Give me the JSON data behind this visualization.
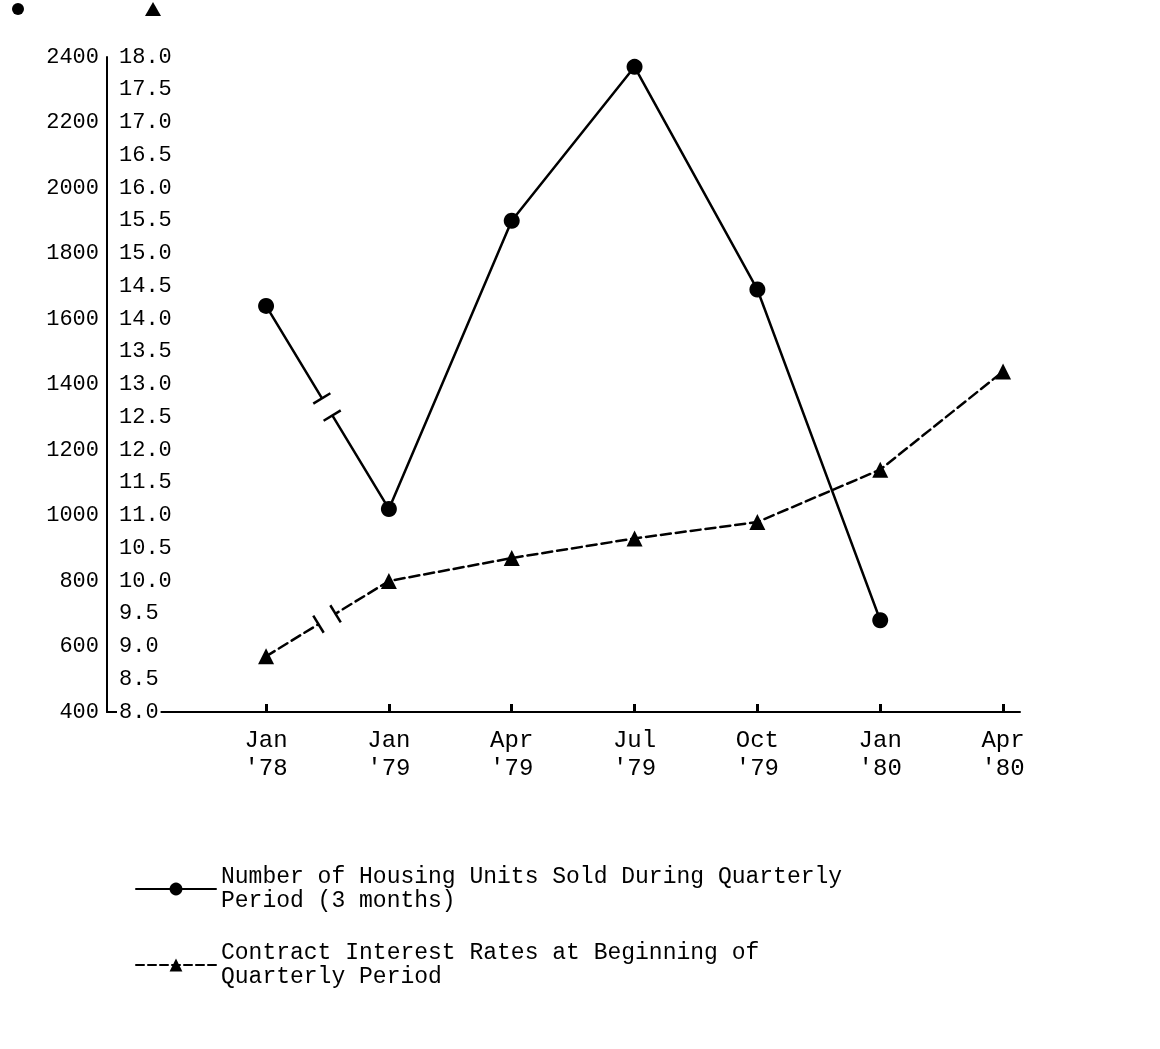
{
  "chart_data": {
    "type": "line",
    "categories": [
      "Jan\n'78",
      "Jan\n'79",
      "Apr\n'79",
      "Jul\n'79",
      "Oct\n'79",
      "Jan\n'80",
      "Apr\n'80"
    ],
    "series": [
      {
        "name": "Number of Housing Units Sold During Quarterly Period (3 months)",
        "color": "#000000",
        "marker": "circle",
        "line_style": "solid",
        "values": [
          1640,
          1020,
          1900,
          2370,
          1690,
          680,
          null
        ]
      },
      {
        "name": "Contract Interest Rates at Beginning of Quarterly Period",
        "color": "#000000",
        "marker": "triangle",
        "line_style": "dashed",
        "axis": "y2",
        "values": [
          8.85,
          10.0,
          10.35,
          10.65,
          10.9,
          11.7,
          13.2
        ]
      }
    ],
    "ylim": [
      400,
      2400
    ],
    "yticks": [
      400,
      600,
      800,
      1000,
      1200,
      1400,
      1600,
      1800,
      2000,
      2200,
      2400
    ],
    "y2lim": [
      8,
      18
    ],
    "y2ticks": [
      {
        "value": 8,
        "label": "8.0"
      },
      {
        "value": 8.5,
        "label": "8.5"
      },
      {
        "value": 9,
        "label": "9.0"
      },
      {
        "value": 9.5,
        "label": "9.5"
      },
      {
        "value": 10,
        "label": "10.0"
      },
      {
        "value": 10.5,
        "label": "10.5"
      },
      {
        "value": 11,
        "label": "11.0"
      },
      {
        "value": 11.5,
        "label": "11.5"
      },
      {
        "value": 12,
        "label": "12.0"
      },
      {
        "value": 12.5,
        "label": "12.5"
      },
      {
        "value": 13,
        "label": "13.0"
      },
      {
        "value": 13.5,
        "label": "13.5"
      },
      {
        "value": 14,
        "label": "14.0"
      },
      {
        "value": 14.5,
        "label": "14.5"
      },
      {
        "value": 15,
        "label": "15.0"
      },
      {
        "value": 15.5,
        "label": "15.5"
      },
      {
        "value": 16,
        "label": "16.0"
      },
      {
        "value": 16.5,
        "label": "16.5"
      },
      {
        "value": 17,
        "label": "17.0"
      },
      {
        "value": 17.5,
        "label": "17.5"
      },
      {
        "value": 18,
        "label": "18.0"
      }
    ],
    "grid": false,
    "legend": "bottom"
  }
}
